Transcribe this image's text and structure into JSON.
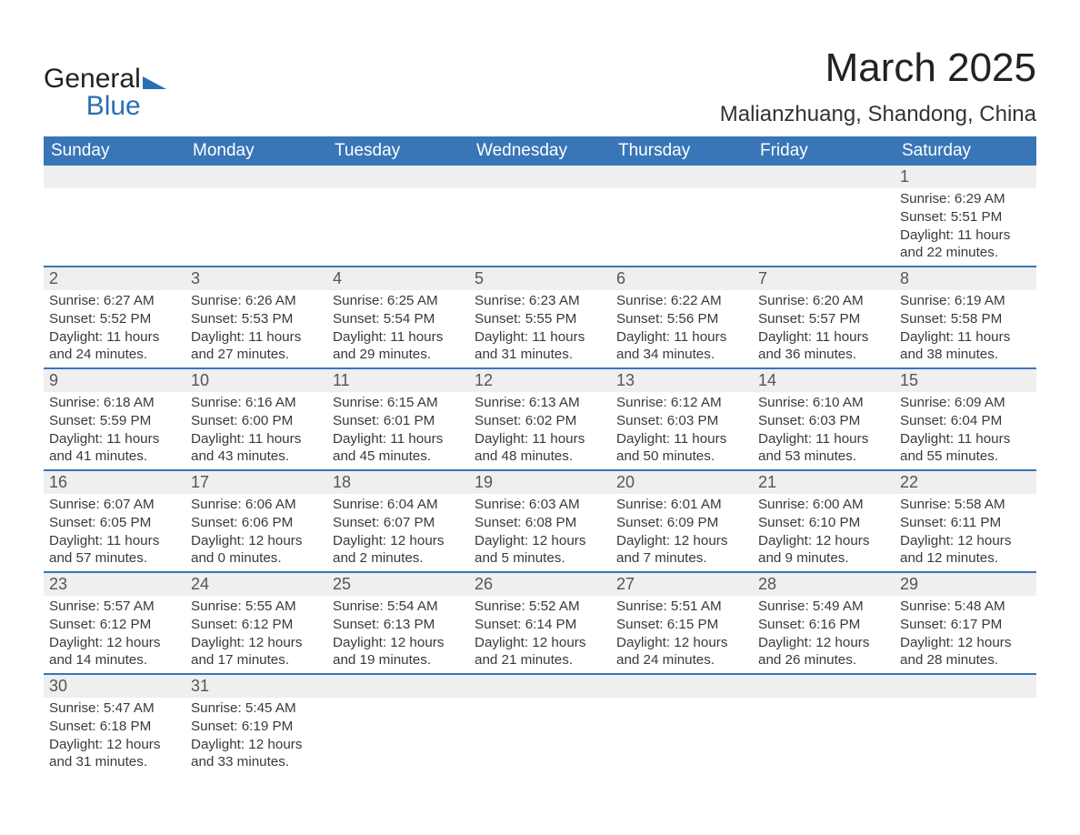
{
  "logo": {
    "line1": "General",
    "line2": "Blue"
  },
  "title": "March 2025",
  "location": "Malianzhuang, Shandong, China",
  "colors": {
    "header_bg": "#3876b7",
    "header_text": "#ffffff",
    "border": "#3876b7",
    "daynum_bg": "#efefef",
    "text": "#333333",
    "logo_accent": "#2a6fb6"
  },
  "day_labels": [
    "Sunday",
    "Monday",
    "Tuesday",
    "Wednesday",
    "Thursday",
    "Friday",
    "Saturday"
  ],
  "weeks": [
    [
      null,
      null,
      null,
      null,
      null,
      null,
      {
        "n": "1",
        "sunrise": "6:29 AM",
        "sunset": "5:51 PM",
        "daylight": "11 hours and 22 minutes."
      }
    ],
    [
      {
        "n": "2",
        "sunrise": "6:27 AM",
        "sunset": "5:52 PM",
        "daylight": "11 hours and 24 minutes."
      },
      {
        "n": "3",
        "sunrise": "6:26 AM",
        "sunset": "5:53 PM",
        "daylight": "11 hours and 27 minutes."
      },
      {
        "n": "4",
        "sunrise": "6:25 AM",
        "sunset": "5:54 PM",
        "daylight": "11 hours and 29 minutes."
      },
      {
        "n": "5",
        "sunrise": "6:23 AM",
        "sunset": "5:55 PM",
        "daylight": "11 hours and 31 minutes."
      },
      {
        "n": "6",
        "sunrise": "6:22 AM",
        "sunset": "5:56 PM",
        "daylight": "11 hours and 34 minutes."
      },
      {
        "n": "7",
        "sunrise": "6:20 AM",
        "sunset": "5:57 PM",
        "daylight": "11 hours and 36 minutes."
      },
      {
        "n": "8",
        "sunrise": "6:19 AM",
        "sunset": "5:58 PM",
        "daylight": "11 hours and 38 minutes."
      }
    ],
    [
      {
        "n": "9",
        "sunrise": "6:18 AM",
        "sunset": "5:59 PM",
        "daylight": "11 hours and 41 minutes."
      },
      {
        "n": "10",
        "sunrise": "6:16 AM",
        "sunset": "6:00 PM",
        "daylight": "11 hours and 43 minutes."
      },
      {
        "n": "11",
        "sunrise": "6:15 AM",
        "sunset": "6:01 PM",
        "daylight": "11 hours and 45 minutes."
      },
      {
        "n": "12",
        "sunrise": "6:13 AM",
        "sunset": "6:02 PM",
        "daylight": "11 hours and 48 minutes."
      },
      {
        "n": "13",
        "sunrise": "6:12 AM",
        "sunset": "6:03 PM",
        "daylight": "11 hours and 50 minutes."
      },
      {
        "n": "14",
        "sunrise": "6:10 AM",
        "sunset": "6:03 PM",
        "daylight": "11 hours and 53 minutes."
      },
      {
        "n": "15",
        "sunrise": "6:09 AM",
        "sunset": "6:04 PM",
        "daylight": "11 hours and 55 minutes."
      }
    ],
    [
      {
        "n": "16",
        "sunrise": "6:07 AM",
        "sunset": "6:05 PM",
        "daylight": "11 hours and 57 minutes."
      },
      {
        "n": "17",
        "sunrise": "6:06 AM",
        "sunset": "6:06 PM",
        "daylight": "12 hours and 0 minutes."
      },
      {
        "n": "18",
        "sunrise": "6:04 AM",
        "sunset": "6:07 PM",
        "daylight": "12 hours and 2 minutes."
      },
      {
        "n": "19",
        "sunrise": "6:03 AM",
        "sunset": "6:08 PM",
        "daylight": "12 hours and 5 minutes."
      },
      {
        "n": "20",
        "sunrise": "6:01 AM",
        "sunset": "6:09 PM",
        "daylight": "12 hours and 7 minutes."
      },
      {
        "n": "21",
        "sunrise": "6:00 AM",
        "sunset": "6:10 PM",
        "daylight": "12 hours and 9 minutes."
      },
      {
        "n": "22",
        "sunrise": "5:58 AM",
        "sunset": "6:11 PM",
        "daylight": "12 hours and 12 minutes."
      }
    ],
    [
      {
        "n": "23",
        "sunrise": "5:57 AM",
        "sunset": "6:12 PM",
        "daylight": "12 hours and 14 minutes."
      },
      {
        "n": "24",
        "sunrise": "5:55 AM",
        "sunset": "6:12 PM",
        "daylight": "12 hours and 17 minutes."
      },
      {
        "n": "25",
        "sunrise": "5:54 AM",
        "sunset": "6:13 PM",
        "daylight": "12 hours and 19 minutes."
      },
      {
        "n": "26",
        "sunrise": "5:52 AM",
        "sunset": "6:14 PM",
        "daylight": "12 hours and 21 minutes."
      },
      {
        "n": "27",
        "sunrise": "5:51 AM",
        "sunset": "6:15 PM",
        "daylight": "12 hours and 24 minutes."
      },
      {
        "n": "28",
        "sunrise": "5:49 AM",
        "sunset": "6:16 PM",
        "daylight": "12 hours and 26 minutes."
      },
      {
        "n": "29",
        "sunrise": "5:48 AM",
        "sunset": "6:17 PM",
        "daylight": "12 hours and 28 minutes."
      }
    ],
    [
      {
        "n": "30",
        "sunrise": "5:47 AM",
        "sunset": "6:18 PM",
        "daylight": "12 hours and 31 minutes."
      },
      {
        "n": "31",
        "sunrise": "5:45 AM",
        "sunset": "6:19 PM",
        "daylight": "12 hours and 33 minutes."
      },
      null,
      null,
      null,
      null,
      null
    ]
  ],
  "labels": {
    "sunrise_prefix": "Sunrise: ",
    "sunset_prefix": "Sunset: ",
    "daylight_prefix": "Daylight: "
  }
}
